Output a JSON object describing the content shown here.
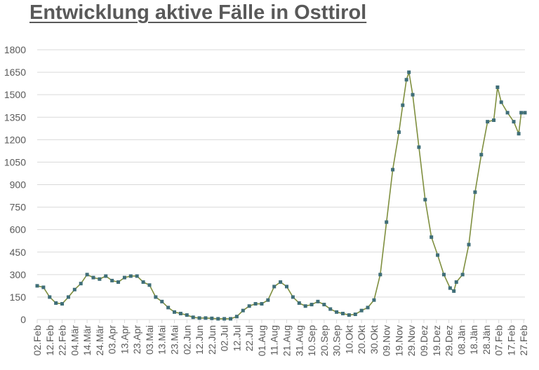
{
  "chart_data": {
    "type": "line",
    "title": "Entwicklung aktive Fälle in Osttirol",
    "xlabel": "",
    "ylabel": "",
    "ylim": [
      0,
      1800
    ],
    "yticks": [
      0,
      150,
      300,
      450,
      600,
      750,
      900,
      1050,
      1200,
      1350,
      1500,
      1650,
      1800
    ],
    "grid": true,
    "legend": "none",
    "x_tick_labels": [
      "02.Feb",
      "12.Feb",
      "22.Feb",
      "04.Mär",
      "14.Mär",
      "24.Mär",
      "03.Apr",
      "13.Apr",
      "23.Apr",
      "03.Mai",
      "13.Mai",
      "23.Mai",
      "02.Jun",
      "12.Jun",
      "22.Jun",
      "02.Jul",
      "12.Jul",
      "22.Jul",
      "01.Aug",
      "11.Aug",
      "21.Aug",
      "31.Aug",
      "10.Sep",
      "20.Sep",
      "30.Sep",
      "10.Okt",
      "20.Okt",
      "30.Okt",
      "09.Nov",
      "19.Nov",
      "29.Nov",
      "09.Dez",
      "19.Dez",
      "29.Dez",
      "08.Jän",
      "18.Jän",
      "28.Jän",
      "07.Feb",
      "17.Feb",
      "27.Feb"
    ],
    "colors": {
      "line": "#7f8f3f",
      "marker": "#3f6e78",
      "grid": "#d9d9d9",
      "text": "#595959"
    },
    "series": [
      {
        "x": [
          "2020-02-02",
          "2020-02-07",
          "2020-02-12",
          "2020-02-17",
          "2020-02-22",
          "2020-02-27",
          "2020-03-03",
          "2020-03-08",
          "2020-03-13",
          "2020-03-18",
          "2020-03-23",
          "2020-03-28",
          "2020-04-02",
          "2020-04-07",
          "2020-04-12",
          "2020-04-17",
          "2020-04-22",
          "2020-04-27",
          "2020-05-02",
          "2020-05-07",
          "2020-05-12",
          "2020-05-17",
          "2020-05-22",
          "2020-05-27",
          "2020-06-01",
          "2020-06-06",
          "2020-06-11",
          "2020-06-16",
          "2020-06-21",
          "2020-06-26",
          "2020-07-01",
          "2020-07-06",
          "2020-07-11",
          "2020-07-16",
          "2020-07-21",
          "2020-07-26",
          "2020-07-31",
          "2020-08-05",
          "2020-08-10",
          "2020-08-15",
          "2020-08-20",
          "2020-08-25",
          "2020-08-30",
          "2020-09-04",
          "2020-09-09",
          "2020-09-14",
          "2020-09-19",
          "2020-09-24",
          "2020-09-29",
          "2020-10-04",
          "2020-10-09",
          "2020-10-14",
          "2020-10-19",
          "2020-10-24",
          "2020-10-29",
          "2020-11-03",
          "2020-11-08",
          "2020-11-13",
          "2020-11-18",
          "2020-11-21",
          "2020-11-24",
          "2020-11-26",
          "2020-11-29",
          "2020-12-04",
          "2020-12-09",
          "2020-12-14",
          "2020-12-19",
          "2020-12-24",
          "2020-12-29",
          "2021-01-01",
          "2021-01-03",
          "2021-01-08",
          "2021-01-13",
          "2021-01-18",
          "2021-01-23",
          "2021-01-28",
          "2021-02-02",
          "2021-02-05",
          "2021-02-08",
          "2021-02-13",
          "2021-02-18",
          "2021-02-22",
          "2021-02-24",
          "2021-02-27"
        ],
        "values": [
          225,
          215,
          150,
          110,
          105,
          150,
          200,
          240,
          300,
          280,
          270,
          290,
          260,
          250,
          280,
          290,
          290,
          250,
          230,
          150,
          120,
          80,
          50,
          40,
          30,
          15,
          10,
          10,
          8,
          5,
          5,
          5,
          20,
          60,
          90,
          105,
          105,
          130,
          220,
          250,
          220,
          150,
          110,
          90,
          100,
          120,
          100,
          70,
          50,
          40,
          30,
          35,
          60,
          80,
          130,
          300,
          650,
          1000,
          1250,
          1430,
          1600,
          1650,
          1500,
          1150,
          800,
          550,
          430,
          300,
          210,
          190,
          250,
          300,
          500,
          850,
          1100,
          1320,
          1330,
          1550,
          1450,
          1380,
          1320,
          1240,
          1380,
          1380
        ]
      }
    ]
  }
}
